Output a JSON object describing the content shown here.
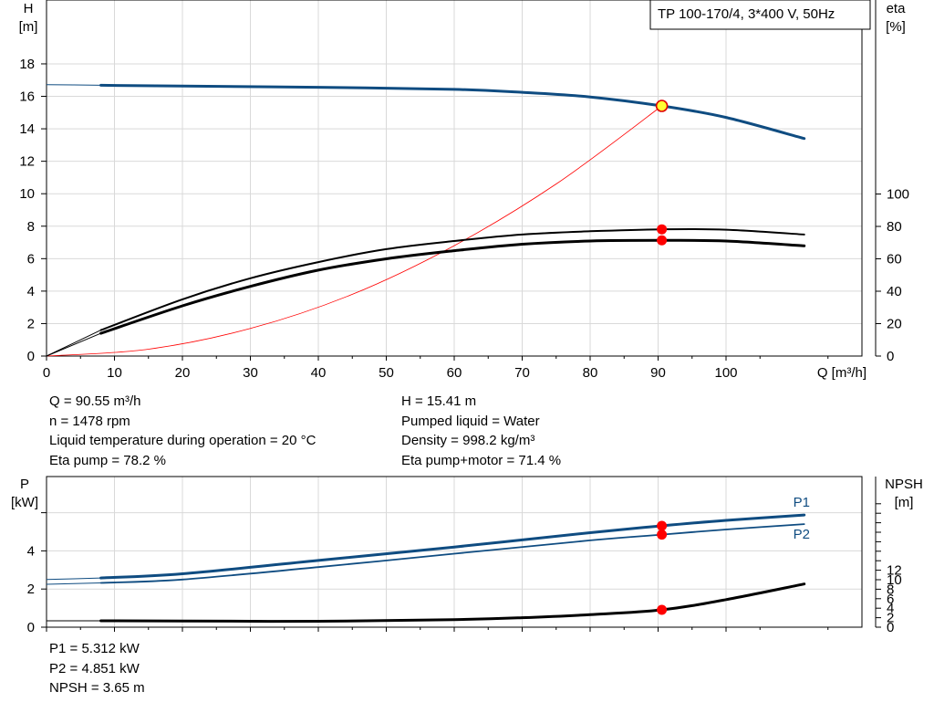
{
  "chart_data": [
    {
      "type": "line",
      "name": "pump-curves",
      "legend_box": "TP 100-170/4, 3*400 V, 50Hz",
      "x_axis": {
        "label": "Q [m³/h]",
        "range": [
          0,
          120
        ],
        "ticks": [
          0,
          10,
          20,
          30,
          40,
          50,
          60,
          70,
          80,
          90,
          100
        ]
      },
      "y_left": {
        "label_top": "H",
        "label_unit": "[m]",
        "range": [
          0,
          20
        ],
        "ticks": [
          0,
          2,
          4,
          6,
          8,
          10,
          12,
          14,
          16,
          18
        ]
      },
      "y_right": {
        "label_top": "eta",
        "label_unit": "[%]",
        "range": [
          0,
          200
        ],
        "ticks": [
          0,
          20,
          40,
          60,
          80,
          100
        ]
      },
      "grid": true,
      "series": [
        {
          "id": "head",
          "color": "#0f4c81",
          "axis": "left",
          "x": [
            0,
            8,
            20,
            40,
            60,
            70,
            80,
            90.55,
            100,
            111.5
          ],
          "y": [
            16.72,
            16.68,
            16.63,
            16.56,
            16.43,
            16.25,
            15.96,
            15.41,
            14.7,
            13.4
          ],
          "operating_point": {
            "x": 90.55,
            "y": 15.41
          }
        },
        {
          "id": "system",
          "color": "#ff0000",
          "axis": "left",
          "x": [
            0,
            15,
            30,
            45,
            60,
            75,
            90.55
          ],
          "y": [
            0,
            0.42,
            1.7,
            3.8,
            6.8,
            10.6,
            15.41
          ]
        },
        {
          "id": "eta-pump",
          "color": "#000000",
          "axis": "right",
          "x": [
            0,
            8,
            20,
            30,
            40,
            50,
            60,
            70,
            80,
            90.55,
            100,
            111.5
          ],
          "y": [
            0,
            16,
            35,
            48,
            58,
            66,
            71,
            75,
            77,
            78.2,
            78,
            75
          ],
          "operating_point": {
            "x": 90.55,
            "y": 78.2
          }
        },
        {
          "id": "eta-pump-motor",
          "color": "#000000",
          "axis": "right",
          "x": [
            0,
            8,
            20,
            30,
            40,
            50,
            60,
            70,
            80,
            90.55,
            100,
            111.5
          ],
          "y": [
            0,
            14,
            31,
            43,
            53,
            60,
            65,
            69,
            71,
            71.4,
            71,
            68
          ],
          "operating_point": {
            "x": 90.55,
            "y": 71.4
          }
        }
      ]
    },
    {
      "type": "line",
      "name": "power-npsh",
      "x_axis": {
        "range": [
          0,
          120
        ],
        "ticks": [
          0,
          10,
          20,
          30,
          40,
          50,
          60,
          70,
          80,
          90,
          100
        ]
      },
      "y_left": {
        "label_top": "P",
        "label_unit": "[kW]",
        "range": [
          0,
          7
        ],
        "ticks": [
          0,
          2,
          4
        ]
      },
      "y_right": {
        "label_top": "NPSH",
        "label_unit": "[m]",
        "range": [
          0,
          28
        ],
        "ticks": [
          0,
          2,
          4,
          6,
          8,
          10,
          12
        ]
      },
      "grid": true,
      "series": [
        {
          "id": "P1",
          "label": "P1",
          "color": "#0f4c81",
          "axis": "left",
          "x": [
            0,
            8,
            20,
            40,
            60,
            80,
            90.55,
            100,
            111.5
          ],
          "y": [
            2.5,
            2.58,
            2.8,
            3.5,
            4.2,
            4.95,
            5.312,
            5.6,
            5.88
          ],
          "operating_point": {
            "x": 90.55,
            "y": 5.312
          }
        },
        {
          "id": "P2",
          "label": "P2",
          "color": "#0f4c81",
          "axis": "left",
          "x": [
            0,
            8,
            20,
            40,
            60,
            80,
            90.55,
            100,
            111.5
          ],
          "y": [
            2.25,
            2.32,
            2.5,
            3.15,
            3.85,
            4.55,
            4.851,
            5.12,
            5.4
          ],
          "operating_point": {
            "x": 90.55,
            "y": 4.851
          }
        },
        {
          "id": "NPSH",
          "color": "#000000",
          "axis": "right",
          "x": [
            0,
            8,
            20,
            40,
            60,
            70,
            80,
            90.55,
            100,
            111.5
          ],
          "y": [
            1.35,
            1.35,
            1.3,
            1.25,
            1.6,
            2.0,
            2.65,
            3.65,
            5.8,
            9.1
          ],
          "operating_point": {
            "x": 90.55,
            "y": 3.65
          }
        }
      ]
    }
  ],
  "info_top": {
    "q": "Q = 90.55 m³/h",
    "n": "n = 1478 rpm",
    "liquid_temp": "Liquid temperature during operation = 20 °C",
    "eta_pump": "Eta pump = 78.2 %",
    "h": "H = 15.41 m",
    "pumped_liquid": "Pumped liquid = Water",
    "density": "Density = 998.2 kg/m³",
    "eta_pump_motor": "Eta pump+motor = 71.4 %"
  },
  "info_bottom": {
    "p1": "P1 = 5.312 kW",
    "p2": "P2 = 4.851 kW",
    "npsh": "NPSH = 3.65 m"
  }
}
